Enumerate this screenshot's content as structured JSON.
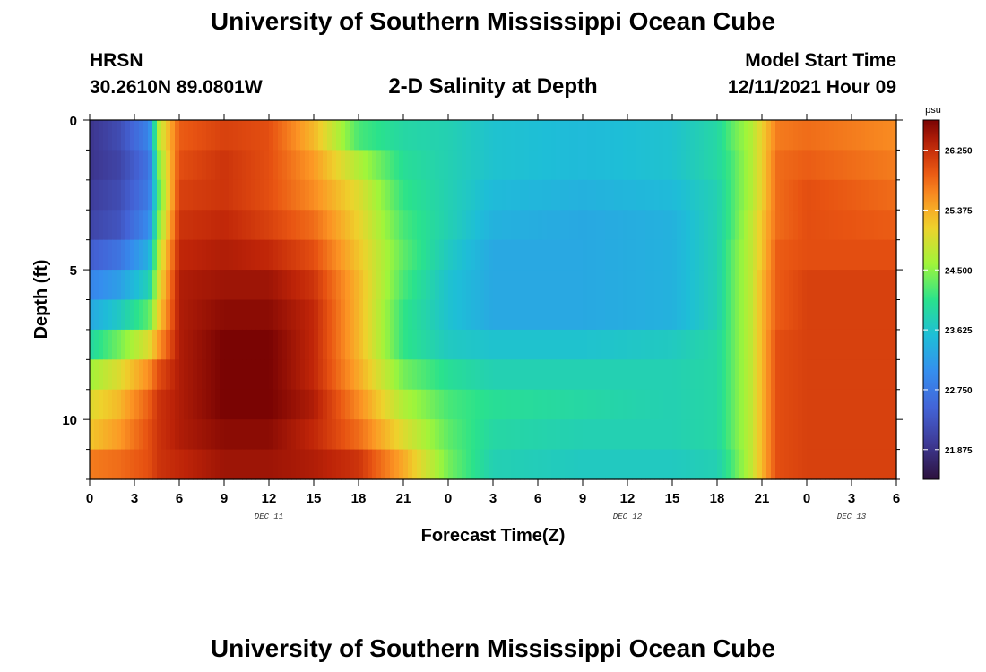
{
  "page": {
    "title": "University of Southern Mississippi Ocean Cube",
    "title_repeat": "University of Southern Mississippi Ocean Cube",
    "station": "HRSN",
    "location": "30.2610N  89.0801W",
    "plot_title": "2-D Salinity at Depth",
    "model_start_label": "Model Start Time",
    "model_start_time": "12/11/2021 Hour 09"
  },
  "chart_data": {
    "type": "heatmap",
    "xlabel": "Forecast Time(Z)",
    "ylabel": "Depth (ft)",
    "x_tick_labels": [
      "0",
      "3",
      "6",
      "9",
      "12",
      "15",
      "18",
      "21",
      "0",
      "3",
      "6",
      "9",
      "12",
      "15",
      "18",
      "21",
      "0",
      "3",
      "6"
    ],
    "day_labels": [
      {
        "label": "DEC 11",
        "hour": 12
      },
      {
        "label": "DEC 12",
        "hour": 36
      },
      {
        "label": "DEC 13",
        "hour": 51
      }
    ],
    "x_range_hours": [
      0,
      54
    ],
    "y_tick_labels": [
      "0",
      "5",
      "10"
    ],
    "y_ticks": [
      0,
      5,
      10
    ],
    "y_range_ft": [
      0,
      12
    ],
    "colorbar": {
      "unit": "psu",
      "range": [
        21.44,
        26.69
      ],
      "tick_values": [
        21.875,
        22.75,
        23.625,
        24.5,
        25.375,
        26.25
      ],
      "tick_labels": [
        "21.875",
        "22.750",
        "23.625",
        "24.500",
        "25.375",
        "26.250"
      ]
    },
    "depth_rows_ft": [
      0.5,
      1.5,
      2.5,
      3.5,
      4.5,
      5.5,
      6.5,
      7.5,
      8.5,
      9.5,
      10.5,
      11.5
    ],
    "time_key_hours": [
      0,
      2,
      4,
      4.6,
      6,
      9,
      12,
      15,
      18,
      21,
      24,
      27,
      33,
      39,
      42,
      43,
      44.3,
      45,
      46,
      48,
      54
    ],
    "salinity_psu": [
      [
        21.9,
        22.2,
        22.9,
        24.7,
        25.9,
        26.1,
        26.0,
        25.3,
        24.2,
        23.9,
        23.8,
        23.6,
        23.5,
        23.6,
        23.9,
        24.3,
        24.7,
        25.1,
        25.7,
        25.8,
        25.6
      ],
      [
        21.9,
        22.1,
        22.7,
        24.4,
        26.0,
        26.2,
        26.0,
        25.5,
        24.7,
        24.0,
        23.8,
        23.6,
        23.5,
        23.6,
        23.9,
        24.2,
        24.7,
        25.1,
        25.8,
        25.9,
        25.7
      ],
      [
        22.0,
        22.2,
        22.8,
        24.2,
        26.1,
        26.2,
        26.0,
        25.6,
        25.0,
        24.1,
        23.8,
        23.5,
        23.4,
        23.5,
        23.8,
        24.2,
        24.7,
        25.1,
        25.8,
        26.0,
        25.8
      ],
      [
        22.1,
        22.3,
        23.0,
        24.4,
        26.2,
        26.3,
        26.1,
        25.8,
        25.1,
        24.2,
        23.8,
        23.4,
        23.3,
        23.4,
        23.8,
        24.2,
        24.8,
        25.2,
        25.8,
        26.0,
        25.9
      ],
      [
        22.4,
        22.7,
        23.4,
        24.7,
        26.3,
        26.4,
        26.3,
        26.0,
        25.2,
        24.3,
        23.7,
        23.3,
        23.3,
        23.4,
        23.8,
        24.3,
        24.8,
        25.2,
        25.9,
        26.0,
        26.0
      ],
      [
        22.9,
        23.2,
        23.8,
        24.9,
        26.4,
        26.5,
        26.5,
        26.2,
        25.3,
        24.2,
        23.6,
        23.3,
        23.3,
        23.4,
        23.8,
        24.3,
        24.8,
        25.3,
        25.9,
        26.1,
        26.1
      ],
      [
        23.3,
        23.7,
        24.3,
        25.1,
        26.4,
        26.6,
        26.6,
        26.3,
        25.3,
        24.1,
        23.6,
        23.3,
        23.3,
        23.4,
        23.8,
        24.3,
        24.8,
        25.3,
        25.9,
        26.1,
        26.1
      ],
      [
        23.9,
        24.4,
        25.0,
        25.5,
        26.4,
        26.7,
        26.7,
        26.3,
        25.3,
        24.1,
        23.7,
        23.6,
        23.6,
        23.7,
        23.9,
        24.3,
        24.8,
        25.3,
        26.0,
        26.1,
        26.1
      ],
      [
        24.6,
        25.0,
        25.6,
        26.0,
        26.4,
        26.7,
        26.7,
        26.3,
        25.4,
        24.4,
        24.0,
        23.8,
        23.8,
        23.8,
        23.9,
        24.3,
        24.8,
        25.3,
        26.0,
        26.1,
        26.1
      ],
      [
        25.0,
        25.3,
        25.9,
        26.2,
        26.4,
        26.7,
        26.7,
        26.4,
        25.6,
        24.7,
        24.2,
        24.0,
        23.9,
        23.8,
        23.9,
        24.3,
        24.8,
        25.3,
        26.0,
        26.1,
        26.1
      ],
      [
        25.2,
        25.5,
        26.0,
        26.2,
        26.4,
        26.6,
        26.6,
        26.3,
        25.8,
        25.0,
        24.3,
        23.9,
        23.8,
        23.8,
        23.9,
        24.3,
        24.8,
        25.3,
        26.0,
        26.1,
        26.1
      ],
      [
        25.7,
        25.8,
        26.0,
        26.2,
        26.3,
        26.5,
        26.5,
        26.4,
        26.2,
        25.4,
        24.4,
        23.8,
        23.7,
        23.7,
        23.8,
        24.2,
        24.8,
        25.3,
        26.0,
        26.1,
        26.1
      ]
    ]
  }
}
